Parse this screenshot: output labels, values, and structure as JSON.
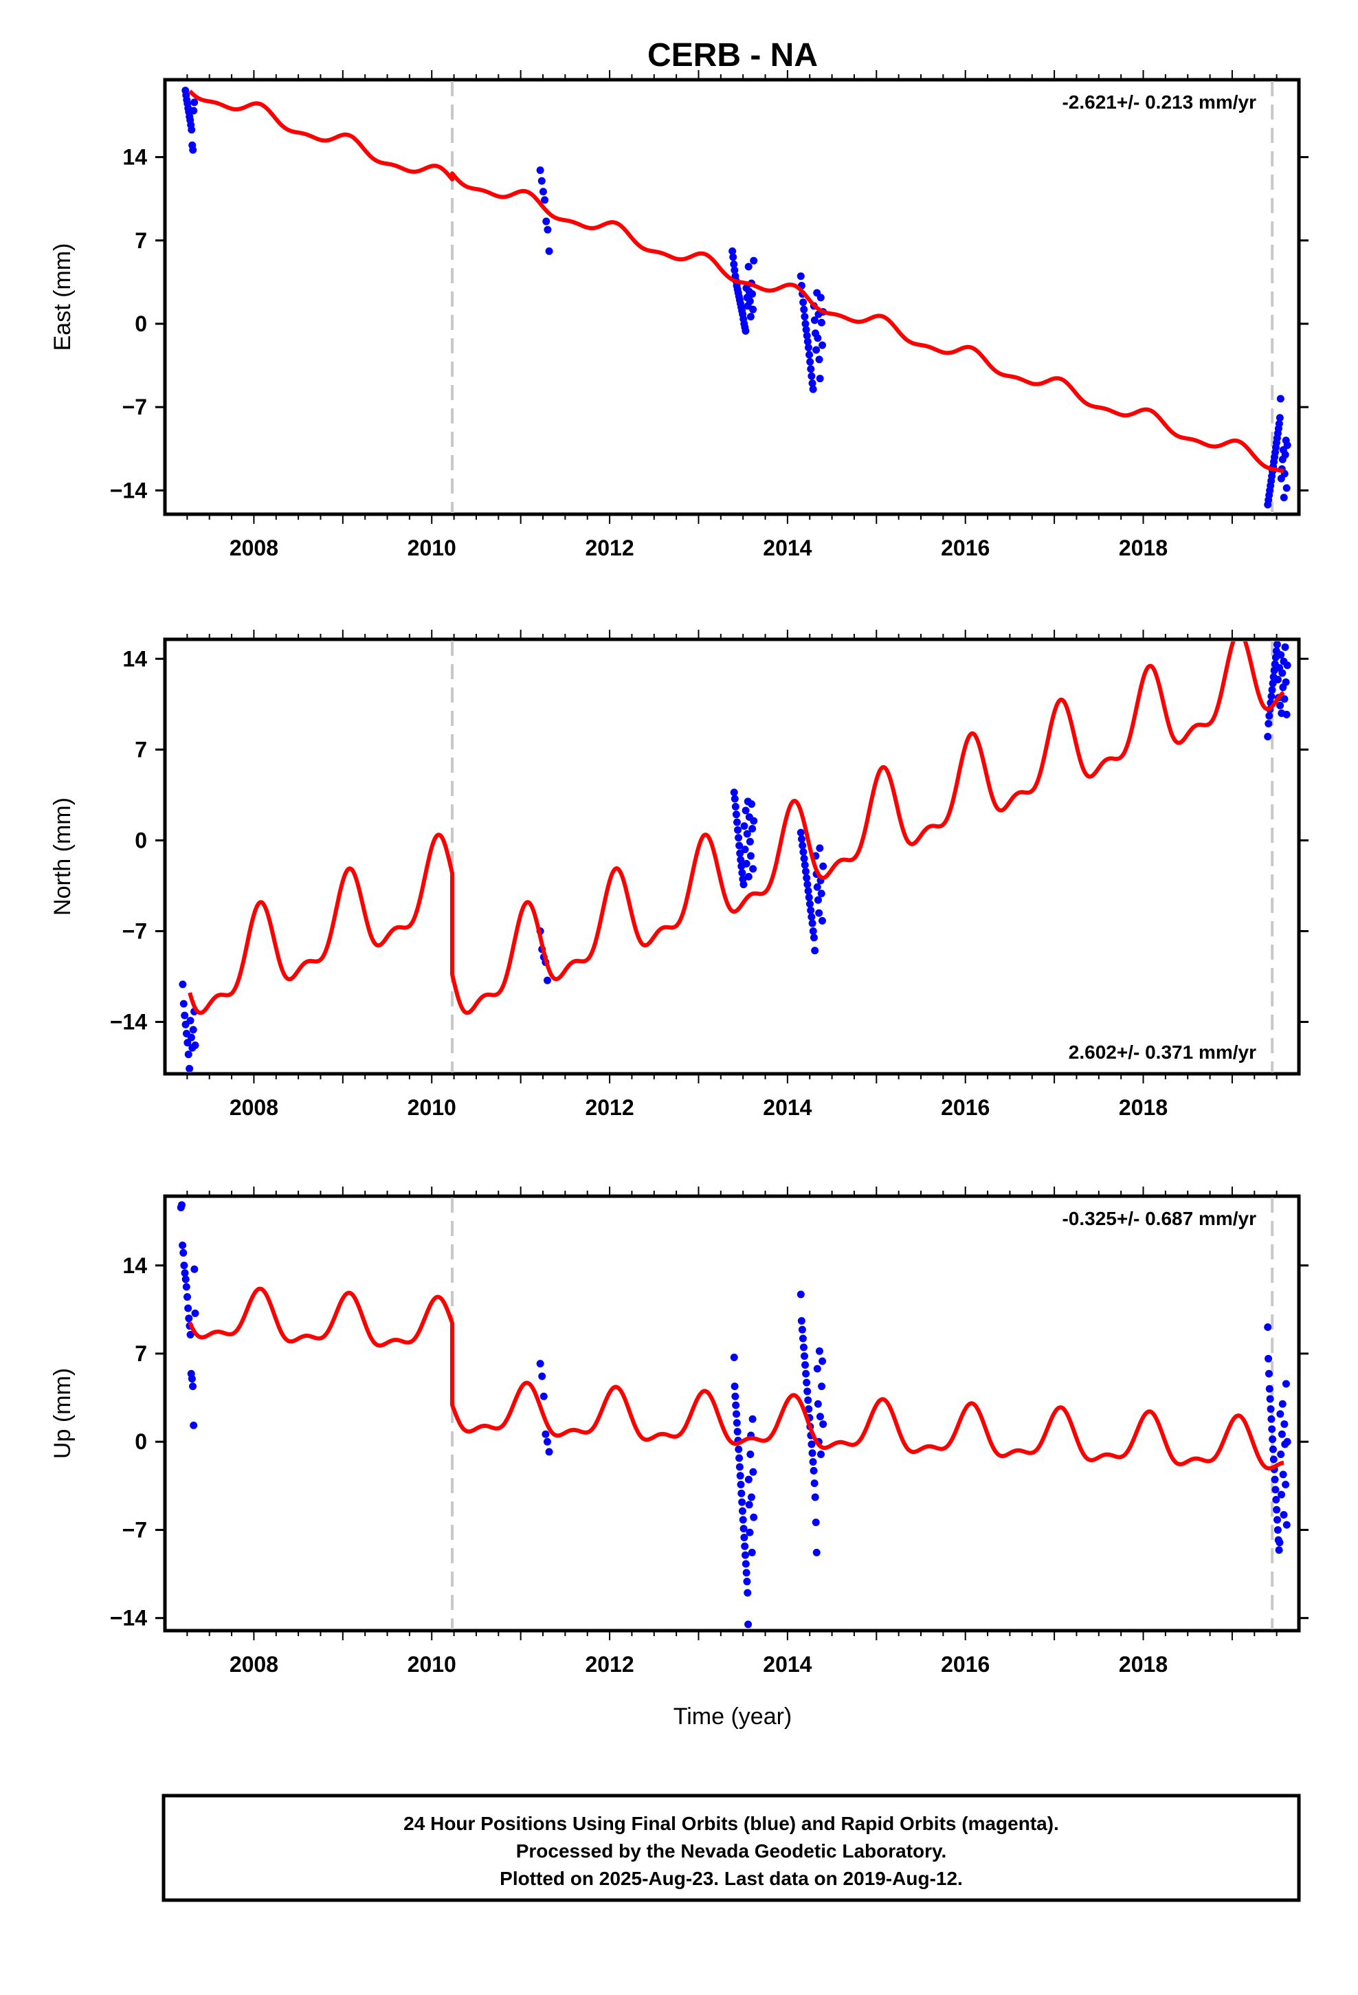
{
  "chart_data": {
    "type": "scatter",
    "title": "CERB - NA",
    "xlabel": "Time (year)",
    "xlim": [
      2007.0,
      2019.75
    ],
    "x_ticks": [
      "2008",
      "2010",
      "2012",
      "2014",
      "2016",
      "2018"
    ],
    "y_ticks": [
      "14",
      "7",
      "0",
      "−7",
      "−14"
    ],
    "equipment_changes": [
      2010.23,
      2019.45
    ],
    "colors": {
      "points": "#0000ff",
      "model": "#ff0000",
      "dash": "#c8c8c8"
    },
    "panels": [
      {
        "ylabel": "East (mm)",
        "ylim": [
          -16,
          20.5
        ],
        "rate": "-2.621+/- 0.213 mm/yr",
        "rate_position": "top-right",
        "trend": {
          "slope": -2.621,
          "y_at_2007": 20.4,
          "offsets": [
            {
              "year": 2010.23,
              "delta": 0.5
            }
          ],
          "annual_amp": 0.6
        },
        "series": [
          {
            "x_start": 2007.23,
            "x_end": 2007.33,
            "values": [
              19.6,
              19.2,
              18.8,
              18.5,
              18.1,
              17.8,
              17.4,
              17.1,
              16.7,
              16.3,
              15.0,
              14.6,
              17.9,
              18.6
            ]
          },
          {
            "x_start": 2011.22,
            "x_end": 2011.32,
            "values": [
              12.9,
              12.0,
              11.1,
              10.4,
              8.6,
              7.9,
              6.1
            ]
          },
          {
            "x_start": 2013.38,
            "x_end": 2013.62,
            "values": [
              6.1,
              5.6,
              5.0,
              4.5,
              4.0,
              3.6,
              3.2,
              2.9,
              2.6,
              2.3,
              2.0,
              1.7,
              1.4,
              1.1,
              0.8,
              0.4,
              0.0,
              -0.3,
              -0.6,
              3.0,
              2.2,
              1.5,
              4.8,
              2.7,
              1.9,
              0.6,
              3.4,
              2.5,
              1.2,
              5.3
            ]
          },
          {
            "x_start": 2014.15,
            "x_end": 2014.4,
            "values": [
              4.0,
              3.2,
              2.5,
              1.8,
              1.2,
              0.6,
              0.0,
              -0.5,
              -1.0,
              -1.5,
              -2.0,
              -2.6,
              -3.2,
              -3.8,
              -4.4,
              -5.0,
              -5.5,
              1.5,
              0.3,
              -0.8,
              -2.2,
              2.6,
              -1.2,
              0.8,
              -3.0,
              -4.6,
              2.2,
              0.1,
              -1.8,
              1.0
            ]
          },
          {
            "x_start": 2019.4,
            "x_end": 2019.62,
            "values": [
              -15.2,
              -14.8,
              -14.4,
              -14.0,
              -13.6,
              -13.2,
              -12.8,
              -12.4,
              -12.0,
              -11.6,
              -11.2,
              -10.8,
              -10.4,
              -10.0,
              -9.6,
              -9.2,
              -8.8,
              -8.4,
              -7.9,
              -6.3,
              -13.0,
              -12.2,
              -11.4,
              -10.6,
              -14.6,
              -12.6,
              -11.0,
              -9.8,
              -13.8,
              -10.2
            ]
          }
        ]
      },
      {
        "ylabel": "North (mm)",
        "ylim": [
          -18,
          15.5
        ],
        "rate": "2.602+/- 0.371 mm/yr",
        "rate_position": "bottom-right",
        "trend": {
          "slope": 2.602,
          "y_at_2007": -11.9,
          "offsets": [
            {
              "year": 2010.23,
              "delta": -7.8
            }
          ],
          "annual_amp": 3.0
        },
        "series": [
          {
            "x_start": 2007.2,
            "x_end": 2007.34,
            "values": [
              -11.1,
              -12.6,
              -13.5,
              -14.2,
              -14.9,
              -15.6,
              -16.5,
              -17.6,
              -13.9,
              -15.2,
              -16.0,
              -14.6,
              -13.2,
              -15.8
            ]
          },
          {
            "x_start": 2011.22,
            "x_end": 2011.3,
            "values": [
              -7.0,
              -8.4,
              -9.0,
              -9.4,
              -10.8
            ]
          },
          {
            "x_start": 2013.4,
            "x_end": 2013.62,
            "values": [
              3.7,
              3.2,
              2.6,
              2.0,
              1.4,
              0.8,
              0.2,
              -0.4,
              -1.0,
              -1.5,
              -2.0,
              -2.5,
              -3.0,
              -3.4,
              1.1,
              -0.7,
              2.3,
              -1.8,
              0.5,
              3.0,
              -2.8,
              1.8,
              -0.1,
              -1.2,
              2.8,
              0.9,
              -2.2,
              1.5
            ]
          },
          {
            "x_start": 2014.15,
            "x_end": 2014.4,
            "values": [
              0.6,
              0.1,
              -0.4,
              -0.9,
              -1.4,
              -1.9,
              -2.4,
              -2.9,
              -3.4,
              -3.9,
              -4.4,
              -4.9,
              -5.4,
              -5.9,
              -6.4,
              -7.0,
              -7.5,
              -8.5,
              -1.2,
              -2.6,
              -3.6,
              -4.6,
              -5.6,
              -0.6,
              -3.1,
              -4.1,
              -6.2,
              -2.0
            ]
          },
          {
            "x_start": 2019.4,
            "x_end": 2019.62,
            "values": [
              8.0,
              9.0,
              9.6,
              10.1,
              10.6,
              11.1,
              11.6,
              12.1,
              12.6,
              13.1,
              13.6,
              14.1,
              14.6,
              15.1,
              12.4,
              11.0,
              13.3,
              10.4,
              14.3,
              9.8,
              12.9,
              11.8,
              13.8,
              10.9,
              14.9,
              12.2,
              9.7,
              13.5
            ]
          }
        ]
      },
      {
        "ylabel": "Up (mm)",
        "ylim": [
          -15,
          19.5
        ],
        "rate": "-0.325+/- 0.687 mm/yr",
        "rate_position": "top-right",
        "trend": {
          "slope": -0.325,
          "y_at_2007": 9.9,
          "offsets": [
            {
              "year": 2010.23,
              "delta": -6.5
            }
          ],
          "annual_amp": 1.8
        },
        "series": [
          {
            "x_start": 2007.18,
            "x_end": 2007.34,
            "values": [
              18.6,
              18.8,
              15.6,
              15.0,
              14.0,
              13.4,
              12.9,
              12.3,
              11.5,
              10.6,
              9.8,
              9.2,
              8.5,
              5.4,
              5.0,
              4.4,
              1.3,
              13.7,
              10.2
            ]
          },
          {
            "x_start": 2011.22,
            "x_end": 2011.32,
            "values": [
              6.2,
              5.2,
              3.6,
              0.6,
              0.0,
              -0.8
            ]
          },
          {
            "x_start": 2013.4,
            "x_end": 2013.62,
            "values": [
              6.7,
              4.4,
              3.6,
              2.9,
              2.2,
              1.5,
              0.8,
              0.1,
              -0.6,
              -1.3,
              -2.0,
              -2.7,
              -3.4,
              -4.1,
              -4.8,
              -5.5,
              -6.2,
              -6.9,
              -7.6,
              -8.3,
              -9.0,
              -9.7,
              -10.4,
              -11.1,
              -12.0,
              -14.5,
              -3.0,
              -5.0,
              -7.2,
              -1.0,
              0.5,
              -4.4,
              -8.8,
              1.8,
              -2.4,
              -6.0
            ]
          },
          {
            "x_start": 2014.15,
            "x_end": 2014.4,
            "values": [
              11.7,
              9.6,
              8.9,
              8.2,
              7.5,
              6.8,
              6.1,
              5.4,
              4.7,
              4.0,
              3.3,
              2.6,
              1.9,
              1.2,
              0.5,
              -0.2,
              -0.9,
              -1.6,
              -2.3,
              -3.3,
              -4.4,
              -6.4,
              -8.8,
              5.8,
              3.0,
              0.0,
              7.2,
              2.0,
              -1.0,
              4.4,
              6.4,
              1.4
            ]
          },
          {
            "x_start": 2019.4,
            "x_end": 2019.62,
            "values": [
              9.1,
              6.6,
              5.4,
              4.2,
              3.4,
              2.6,
              1.8,
              1.0,
              0.2,
              -0.6,
              -1.4,
              -2.2,
              -3.0,
              -3.8,
              -4.6,
              -5.4,
              -6.2,
              -7.0,
              -7.8,
              -8.6,
              -8.0,
              2.2,
              -1.0,
              -4.2,
              0.6,
              3.0,
              -2.6,
              -5.8,
              1.4,
              -0.2,
              -3.4,
              4.6,
              -6.6,
              0.0
            ]
          }
        ]
      }
    ],
    "footer": [
      "24 Hour Positions Using Final Orbits (blue) and Rapid Orbits (magenta).",
      "Processed by the Nevada Geodetic Laboratory.",
      "Plotted on 2025-Aug-23. Last data on 2019-Aug-12."
    ]
  }
}
